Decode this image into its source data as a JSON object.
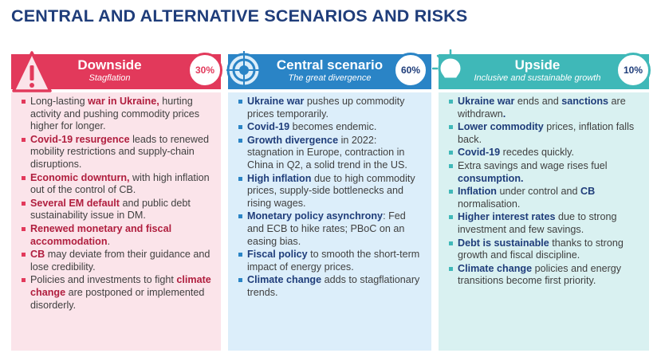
{
  "title": "CENTRAL AND ALTERNATIVE SCENARIOS AND RISKS",
  "colors": {
    "downside": "#e2395b",
    "central": "#2a84c6",
    "upside": "#3fb8b8",
    "title": "#1f3d7a"
  },
  "columns": [
    {
      "key": "downside",
      "title": "Downside",
      "subtitle": "Stagflation",
      "probability": "30%",
      "icon": "warning-triangle-icon",
      "items": [
        [
          {
            "t": "Long-lasting "
          },
          {
            "t": "war in Ukraine,",
            "b": true
          },
          {
            "t": " hurting activity and pushing commodity prices higher for longer."
          }
        ],
        [
          {
            "t": "Covid-19 resurgence",
            "b": true
          },
          {
            "t": " leads to renewed mobility restrictions and supply-chain disruptions."
          }
        ],
        [
          {
            "t": "Economic downturn,",
            "b": true
          },
          {
            "t": " with high inflation out of the control of CB."
          }
        ],
        [
          {
            "t": "Several EM default",
            "b": true
          },
          {
            "t": " and public debt sustainability issue in DM."
          }
        ],
        [
          {
            "t": "Renewed monetary and fiscal accommodation",
            "b": true
          },
          {
            "t": "."
          }
        ],
        [
          {
            "t": "CB",
            "b": true
          },
          {
            "t": " may deviate from their guidance and lose credibility."
          }
        ],
        [
          {
            "t": "Policies and investments to fight "
          },
          {
            "t": "climate change",
            "b": true
          },
          {
            "t": " are postponed or implemented disorderly."
          }
        ]
      ]
    },
    {
      "key": "central",
      "title": "Central scenario",
      "subtitle": "The great divergence",
      "probability": "60%",
      "icon": "target-icon",
      "items": [
        [
          {
            "t": "Ukraine war",
            "b": true
          },
          {
            "t": " pushes up commodity prices temporarily."
          }
        ],
        [
          {
            "t": "Covid-19",
            "b": true
          },
          {
            "t": " becomes endemic."
          }
        ],
        [
          {
            "t": "Growth divergence",
            "b": true
          },
          {
            "t": " in 2022: stagnation in Europe, contraction in China in Q2, a solid trend in the US."
          }
        ],
        [
          {
            "t": "High inflation",
            "b": true
          },
          {
            "t": " due to high commodity prices, supply-side bottlenecks and rising wages."
          }
        ],
        [
          {
            "t": "Monetary policy asynchrony",
            "b": true
          },
          {
            "t": ": Fed and ECB to hike rates; PBoC on an easing bias."
          }
        ],
        [
          {
            "t": "Fiscal policy",
            "b": true
          },
          {
            "t": " to smooth the short-term impact of energy prices."
          }
        ],
        [
          {
            "t": "Climate change",
            "b": true
          },
          {
            "t": " adds to stagflationary trends."
          }
        ]
      ]
    },
    {
      "key": "upside",
      "title": "Upside",
      "subtitle": "Inclusive and sustainable growth",
      "probability": "10%",
      "icon": "lightbulb-icon",
      "items": [
        [
          {
            "t": "Ukraine war",
            "b": true
          },
          {
            "t": " ends and "
          },
          {
            "t": "sanctions",
            "b": true
          },
          {
            "t": " are withdrawn"
          },
          {
            "t": ".",
            "b": true
          }
        ],
        [
          {
            "t": "Lower commodity",
            "b": true
          },
          {
            "t": " prices, inflation falls back."
          }
        ],
        [
          {
            "t": "Covid-19",
            "b": true
          },
          {
            "t": " recedes quickly."
          }
        ],
        [
          {
            "t": "Extra savings and wage rises fuel "
          },
          {
            "t": "consumption.",
            "b": true
          }
        ],
        [
          {
            "t": "Inflation",
            "b": true
          },
          {
            "t": " under control and "
          },
          {
            "t": "CB",
            "b": true
          },
          {
            "t": " normalisation."
          }
        ],
        [
          {
            "t": "Higher interest rates",
            "b": true
          },
          {
            "t": " due to strong investment and few savings."
          }
        ],
        [
          {
            "t": "Debt is sustainable",
            "b": true
          },
          {
            "t": " thanks to strong growth and fiscal discipline."
          }
        ],
        [
          {
            "t": "Climate change",
            "b": true
          },
          {
            "t": " policies and energy transitions become first priority."
          }
        ]
      ]
    }
  ]
}
